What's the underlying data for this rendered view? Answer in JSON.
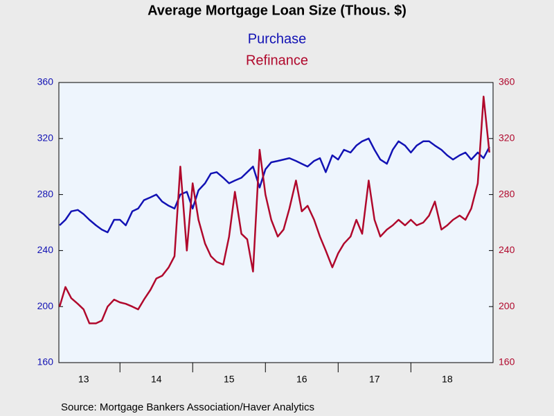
{
  "chart_data": {
    "type": "line",
    "title": "Average Mortgage Loan Size (Thous. $)",
    "source": "Source:  Mortgage Bankers Association/Haver Analytics",
    "x": [
      2013.17,
      2013.25,
      2013.33,
      2013.42,
      2013.5,
      2013.58,
      2013.67,
      2013.75,
      2013.83,
      2013.92,
      2014.0,
      2014.08,
      2014.17,
      2014.25,
      2014.33,
      2014.42,
      2014.5,
      2014.58,
      2014.67,
      2014.75,
      2014.83,
      2014.92,
      2015.0,
      2015.08,
      2015.17,
      2015.25,
      2015.33,
      2015.42,
      2015.5,
      2015.58,
      2015.67,
      2015.75,
      2015.83,
      2015.92,
      2016.0,
      2016.08,
      2016.17,
      2016.25,
      2016.33,
      2016.42,
      2016.5,
      2016.58,
      2016.67,
      2016.75,
      2016.83,
      2016.92,
      2017.0,
      2017.08,
      2017.17,
      2017.25,
      2017.33,
      2017.42,
      2017.5,
      2017.58,
      2017.67,
      2017.75,
      2017.83,
      2017.92,
      2018.0,
      2018.08,
      2018.17,
      2018.25,
      2018.33,
      2018.42,
      2018.5,
      2018.58,
      2018.67,
      2018.75,
      2018.83,
      2018.92,
      2019.0,
      2019.08
    ],
    "series": [
      {
        "name": "Purchase",
        "color": "#1212b4",
        "axis": "y",
        "values": [
          258,
          262,
          268,
          269,
          266,
          262,
          258,
          255,
          253,
          262,
          262,
          258,
          268,
          270,
          276,
          278,
          280,
          275,
          272,
          270,
          280,
          282,
          270,
          283,
          288,
          295,
          296,
          292,
          288,
          290,
          292,
          296,
          300,
          285,
          298,
          303,
          304,
          305,
          306,
          304,
          302,
          300,
          304,
          306,
          296,
          308,
          305,
          312,
          310,
          315,
          318,
          320,
          312,
          305,
          302,
          312,
          318,
          315,
          310,
          315,
          318,
          318,
          315,
          312,
          308,
          305,
          308,
          310,
          305,
          310,
          306,
          314
        ]
      },
      {
        "name": "Refinance",
        "color": "#b0082c",
        "axis": "y2",
        "values": [
          200,
          214,
          206,
          202,
          198,
          188,
          188,
          190,
          200,
          205,
          203,
          202,
          200,
          198,
          205,
          212,
          220,
          222,
          228,
          236,
          300,
          240,
          288,
          262,
          245,
          236,
          232,
          230,
          250,
          282,
          252,
          248,
          225,
          312,
          280,
          262,
          250,
          255,
          270,
          290,
          268,
          272,
          262,
          250,
          240,
          228,
          238,
          245,
          250,
          262,
          252,
          290,
          262,
          250,
          255,
          258,
          262,
          258,
          262,
          258,
          260,
          265,
          275,
          255,
          258,
          262,
          265,
          262,
          270,
          288,
          350,
          310
        ]
      }
    ],
    "xlim": [
      2013.16,
      2019.13
    ],
    "xticks": [
      2014,
      2015,
      2016,
      2017,
      2018
    ],
    "xtick_labels": [
      {
        "value": 2013.5,
        "label": "13"
      },
      {
        "value": 2014.5,
        "label": "14"
      },
      {
        "value": 2015.5,
        "label": "15"
      },
      {
        "value": 2016.5,
        "label": "16"
      },
      {
        "value": 2017.5,
        "label": "17"
      },
      {
        "value": 2018.5,
        "label": "18"
      }
    ],
    "ylim": [
      160,
      360
    ],
    "yticks": [
      160,
      200,
      240,
      280,
      320,
      360
    ],
    "y2lim": [
      160,
      360
    ],
    "y2ticks": [
      160,
      200,
      240,
      280,
      320,
      360
    ]
  }
}
